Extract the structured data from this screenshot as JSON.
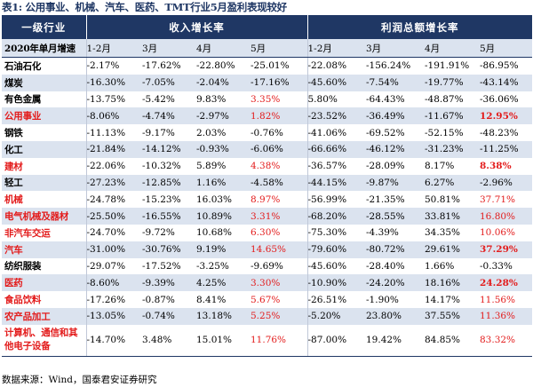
{
  "title": "表1: 公用事业、机械、汽车、医药、TMT行业5月盈利表现较好",
  "header": {
    "industry_label": "一级行业",
    "revenue_group": "收入增长率",
    "profit_group": "利润总额增长率"
  },
  "subheader": {
    "row_label": "2020年单月增速",
    "months": [
      "1-2月",
      "3月",
      "4月",
      "5月",
      "1-2月",
      "3月",
      "4月",
      "5月"
    ]
  },
  "rows": [
    {
      "name": "石油石化",
      "values": [
        "-2.17%",
        "-17.62%",
        "-22.80%",
        "-25.01%",
        "-22.08%",
        "-156.24%",
        "-191.91%",
        "-86.95%"
      ]
    },
    {
      "name": "煤炭",
      "values": [
        "-16.30%",
        "-7.05%",
        "-2.04%",
        "-17.16%",
        "-45.60%",
        "-7.54%",
        "-19.77%",
        "-43.14%"
      ]
    },
    {
      "name": "有色金属",
      "values": [
        "-13.75%",
        "-5.42%",
        "9.83%",
        "3.35%",
        "5.80%",
        "-64.43%",
        "-48.87%",
        "-36.06%"
      ]
    },
    {
      "name": "公用事业",
      "values": [
        "-8.06%",
        "-4.74%",
        "-2.97%",
        "1.82%",
        "-23.52%",
        "-36.49%",
        "-11.67%",
        "12.95%"
      ]
    },
    {
      "name": "钢铁",
      "values": [
        "-11.13%",
        "-9.17%",
        "2.03%",
        "-0.76%",
        "-41.06%",
        "-69.52%",
        "-52.15%",
        "-48.23%"
      ]
    },
    {
      "name": "化工",
      "values": [
        "-21.84%",
        "-14.12%",
        "-0.93%",
        "-6.06%",
        "-66.66%",
        "-46.12%",
        "-31.23%",
        "-11.25%"
      ]
    },
    {
      "name": "建材",
      "values": [
        "-22.06%",
        "-10.32%",
        "5.89%",
        "4.38%",
        "-36.57%",
        "-28.09%",
        "8.17%",
        "8.38%"
      ]
    },
    {
      "name": "轻工",
      "values": [
        "-27.23%",
        "-12.85%",
        "1.16%",
        "-4.58%",
        "-44.15%",
        "-9.87%",
        "6.27%",
        "-2.96%"
      ]
    },
    {
      "name": "机械",
      "values": [
        "-24.78%",
        "-15.23%",
        "16.03%",
        "8.97%",
        "-56.99%",
        "-21.35%",
        "50.81%",
        "37.71%"
      ]
    },
    {
      "name": "电气机械及器材",
      "values": [
        "-25.50%",
        "-16.55%",
        "10.89%",
        "3.31%",
        "-68.20%",
        "-28.55%",
        "33.81%",
        "16.80%"
      ]
    },
    {
      "name": "非汽车交运",
      "values": [
        "-24.70%",
        "-9.72%",
        "10.68%",
        "6.30%",
        "-75.30%",
        "-4.39%",
        "34.35%",
        "10.06%"
      ]
    },
    {
      "name": "汽车",
      "values": [
        "-31.00%",
        "-30.76%",
        "9.19%",
        "14.65%",
        "-79.60%",
        "-80.72%",
        "29.61%",
        "37.29%"
      ]
    },
    {
      "name": "纺织服装",
      "values": [
        "-29.07%",
        "-17.52%",
        "-3.25%",
        "-9.69%",
        "-45.60%",
        "-28.40%",
        "1.66%",
        "-0.33%"
      ]
    },
    {
      "name": "医药",
      "values": [
        "-8.60%",
        "-9.39%",
        "4.25%",
        "3.30%",
        "-10.90%",
        "-24.20%",
        "18.16%",
        "24.28%"
      ]
    },
    {
      "name": "食品饮料",
      "values": [
        "-17.26%",
        "-0.87%",
        "8.41%",
        "5.67%",
        "-26.51%",
        "-1.90%",
        "14.17%",
        "11.56%"
      ]
    },
    {
      "name": "农产品加工",
      "values": [
        "-13.05%",
        "-0.74%",
        "13.18%",
        "5.25%",
        "-5.20%",
        "23.80%",
        "37.55%",
        "11.36%"
      ]
    },
    {
      "name": "计算机、通信和其他电子设备",
      "values": [
        "-14.70%",
        "3.48%",
        "15.01%",
        "11.76%",
        "-87.00%",
        "19.42%",
        "84.85%",
        "83.32%"
      ]
    }
  ],
  "source": "数据来源：Wind，国泰君安证券研究",
  "colors": {
    "header_bg": "#1f3764",
    "stripe": "#dbe3ef",
    "highlight": "#e31c1c"
  }
}
